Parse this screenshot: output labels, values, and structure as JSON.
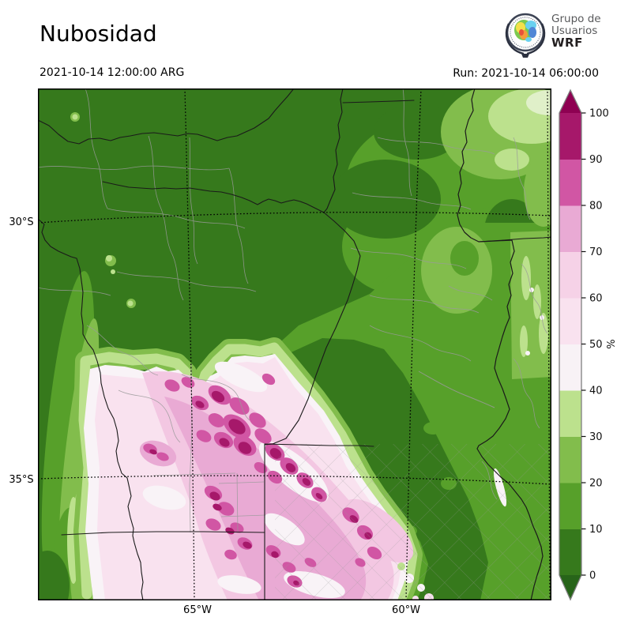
{
  "header": {
    "title": "Nubosidad",
    "valid_time": "2021-10-14 12:00:00 ARG",
    "run_time": "Run: 2021-10-14 06:00:00"
  },
  "logo": {
    "line1": "Grupo de",
    "line2": "Usuarios",
    "line3": "WRF"
  },
  "map": {
    "lat_labels": [
      {
        "text": "30°S"
      },
      {
        "text": "35°S"
      }
    ],
    "lon_labels": [
      {
        "text": "65°W"
      },
      {
        "text": "60°W"
      }
    ]
  },
  "colorbar": {
    "unit": "%",
    "tick_values": [
      0,
      10,
      20,
      30,
      40,
      50,
      60,
      70,
      80,
      90,
      100
    ],
    "segment_colors_bottom_to_top": [
      "#36791c",
      "#57a02a",
      "#82bd4c",
      "#bce18d",
      "#f8f2f6",
      "#f9e2ef",
      "#f6d2e7",
      "#e9aad4",
      "#d156a4",
      "#a6186a"
    ],
    "extend_under_color": "#276419",
    "extend_over_color": "#8e0152",
    "outline_color": "#7f7f7f"
  },
  "palette": {
    "g1": "#36791c",
    "g2": "#57a02a",
    "g3": "#82bd4c",
    "g4": "#bce18d",
    "gw": "#e0f0c9",
    "w": "#f9f3f7",
    "p1": "#f9e2ef",
    "p2": "#f3c7e2",
    "p3": "#e9aad4",
    "p4": "#d156a4",
    "p5": "#a6186a",
    "province": "#1a1a1a",
    "department": "#9a9a9a",
    "graticule": "#000000"
  }
}
